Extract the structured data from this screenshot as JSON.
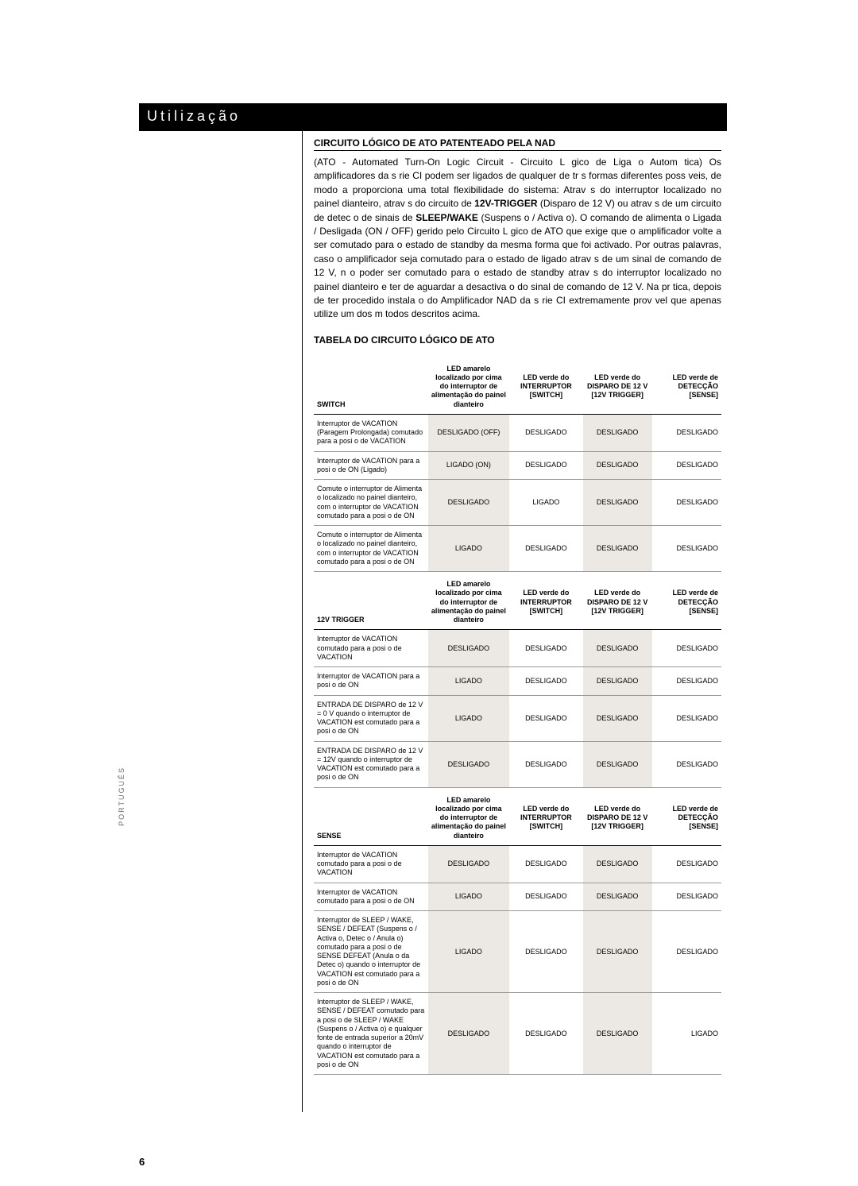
{
  "sidetab_text": "PORTUGUÊS",
  "page_number": "6",
  "title_bar": "Utilização",
  "heading1": "CIRCUITO LÓGICO DE ATO PATENTEADO PELA NAD",
  "para1": "(ATO - Automated Turn-On Logic Circuit - Circuito L gico de Liga  o Autom tica)\nOs amplificadores da s rie CI podem ser ligados de qualquer de tr s formas diferentes poss veis, de modo a proporciona uma total flexibilidade do sistema: Atrav s do interruptor localizado no painel dianteiro, atrav s do circuito de ",
  "bold1": "12V-TRIGGER",
  "para1b": " (Disparo de 12 V) ou atrav s de um circuito de detec  o de sinais de ",
  "bold2": "SLEEP/WAKE",
  "para1c": " (Suspens o / Activa  o). O comando de alimenta  o Ligada / Desligada (ON / OFF)   gerido pelo Circuito L gico de ATO que exige que o amplificador volte a ser comutado para o estado de standby da mesma forma que foi activado. Por outras palavras, caso o amplificador seja comutado para o estado de ligado atrav s de um sinal de comando de 12 V, n o poder  ser comutado para o estado de standby atrav s do interruptor localizado no painel dianteiro e ter  de aguardar a desactiva  o do sinal de comando de 12 V. Na pr tica, depois de ter procedido   instala  o do Amplificador NAD da s rie CI   extremamente prov vel que apenas utilize um dos m todos descritos acima.",
  "table_heading": "TABELA DO CIRCUITO LÓGICO DE ATO",
  "headers_main": {
    "col0_a": "SWITCH",
    "col0_b": "12V TRIGGER",
    "col0_c": "SENSE",
    "col1": "LED amarelo localizado por cima do interruptor de alimentação do painel dianteiro",
    "col2": "LED verde do INTERRUPTOR [SWITCH]",
    "col3": "LED verde do DISPARO DE 12 V [12V TRIGGER]",
    "col4": "LED verde de DETECÇÃO [SENSE]"
  },
  "sections": [
    {
      "head_key": "col0_a",
      "rows": [
        {
          "desc": "Interruptor de VACATION (Paragem Prolongada) comutado para a posi  o de VACATION",
          "v": [
            "DESLIGADO (OFF)",
            "DESLIGADO",
            "DESLIGADO",
            "DESLIGADO"
          ],
          "shade": [
            0,
            2
          ]
        },
        {
          "desc": "Interruptor de VACATION para a posi  o de ON (Ligado)",
          "v": [
            "LIGADO (ON)",
            "DESLIGADO",
            "DESLIGADO",
            "DESLIGADO"
          ],
          "shade": [
            0,
            2
          ]
        },
        {
          "desc": "Comute o interruptor de Alimenta  o localizado no painel dianteiro, com o interruptor de VACATION comutado para a posi  o de ON",
          "v": [
            "DESLIGADO",
            "LIGADO",
            "DESLIGADO",
            "DESLIGADO"
          ],
          "shade": [
            0,
            2
          ]
        },
        {
          "desc": "Comute o interruptor de Alimenta  o localizado no painel dianteiro, com o interruptor de VACATION comutado para a posi  o de ON",
          "v": [
            "LIGADO",
            "DESLIGADO",
            "DESLIGADO",
            "DESLIGADO"
          ],
          "shade": [
            0,
            2
          ]
        }
      ]
    },
    {
      "head_key": "col0_b",
      "rows": [
        {
          "desc": "Interruptor de VACATION comutado para a posi  o de VACATION",
          "v": [
            "DESLIGADO",
            "DESLIGADO",
            "DESLIGADO",
            "DESLIGADO"
          ],
          "shade": [
            0,
            2
          ]
        },
        {
          "desc": "Interruptor de VACATION para a posi  o de ON",
          "v": [
            "LIGADO",
            "DESLIGADO",
            "DESLIGADO",
            "DESLIGADO"
          ],
          "shade": [
            0,
            2
          ]
        },
        {
          "desc": "ENTRADA DE DISPARO de 12 V = 0 V quando o interruptor de VACATION est  comutado para a posi  o de ON",
          "v": [
            "LIGADO",
            "DESLIGADO",
            "DESLIGADO",
            "DESLIGADO"
          ],
          "shade": [
            0,
            2
          ]
        },
        {
          "desc": "ENTRADA DE DISPARO de 12 V = 12V quando o interruptor de VACATION est  comutado para a posi  o de ON",
          "v": [
            "DESLIGADO",
            "DESLIGADO",
            "DESLIGADO",
            "DESLIGADO"
          ],
          "shade": [
            0,
            2
          ]
        }
      ]
    },
    {
      "head_key": "col0_c",
      "rows": [
        {
          "desc": "Interruptor de VACATION comutado para a posi  o de VACATION",
          "v": [
            "DESLIGADO",
            "DESLIGADO",
            "DESLIGADO",
            "DESLIGADO"
          ],
          "shade": [
            0,
            2
          ]
        },
        {
          "desc": "Interruptor de VACATION comutado para a posi  o de ON",
          "v": [
            "LIGADO",
            "DESLIGADO",
            "DESLIGADO",
            "DESLIGADO"
          ],
          "shade": [
            0,
            2
          ]
        },
        {
          "desc": "Interruptor de SLEEP / WAKE, SENSE / DEFEAT (Suspens o / Activa  o, Detec  o / Anula  o) comutado para a posi  o de SENSE DEFEAT (Anula  o da Detec  o) quando o interruptor de VACATION est  comutado para a posi  o de ON",
          "v": [
            "LIGADO",
            "DESLIGADO",
            "DESLIGADO",
            "DESLIGADO"
          ],
          "shade": [
            0,
            2
          ]
        },
        {
          "desc": "Interruptor de SLEEP / WAKE, SENSE / DEFEAT comutado para a posi  o de SLEEP / WAKE (Suspens o / Activa  o) e qualquer fonte de entrada superior a 20mV quando o interruptor de VACATION est  comutado para a posi  o de ON",
          "v": [
            "DESLIGADO",
            "DESLIGADO",
            "DESLIGADO",
            "LIGADO"
          ],
          "shade": [
            0,
            2
          ]
        }
      ]
    }
  ]
}
